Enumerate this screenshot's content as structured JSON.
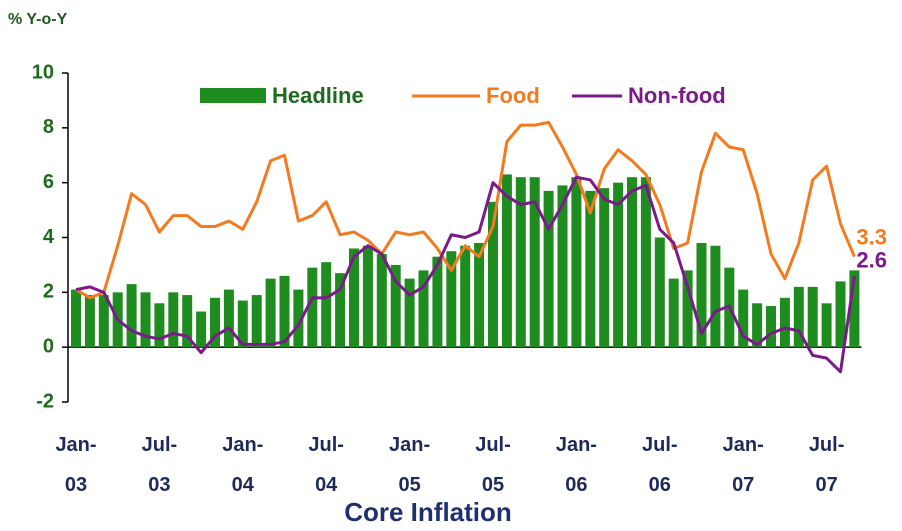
{
  "chart_data": {
    "type": "bar",
    "title": "Core Inflation",
    "y_label": "% Y-o-Y",
    "categories": [
      "Jan-\n03",
      null,
      null,
      null,
      null,
      null,
      "Jul-\n03",
      null,
      null,
      null,
      null,
      null,
      "Jan-\n04",
      null,
      null,
      null,
      null,
      null,
      "Jul-\n04",
      null,
      null,
      null,
      null,
      null,
      "Jan-\n05",
      null,
      null,
      null,
      null,
      null,
      "Jul-\n05",
      null,
      null,
      null,
      null,
      null,
      "Jan-\n06",
      null,
      null,
      null,
      null,
      null,
      "Jul-\n06",
      null,
      null,
      null,
      null,
      null,
      "Jan-\n07",
      null,
      null,
      null,
      null,
      null,
      "Jul-\n07",
      null,
      null
    ],
    "series": [
      {
        "name": "Headline",
        "type": "bar",
        "color": "#1e8c1e",
        "values": [
          2.1,
          1.9,
          1.9,
          2.0,
          2.3,
          2.0,
          1.6,
          2.0,
          1.9,
          1.3,
          1.8,
          2.1,
          1.7,
          1.9,
          2.5,
          2.6,
          2.1,
          2.9,
          3.1,
          2.7,
          3.6,
          3.7,
          3.4,
          3.0,
          2.5,
          2.8,
          3.3,
          3.5,
          3.7,
          3.8,
          5.3,
          6.3,
          6.2,
          6.2,
          5.7,
          5.9,
          6.2,
          5.7,
          5.8,
          6.0,
          6.2,
          6.2,
          4.0,
          2.5,
          2.8,
          3.8,
          3.7,
          2.9,
          2.1,
          1.6,
          1.5,
          1.8,
          2.2,
          2.2,
          1.6,
          2.4,
          2.8
        ]
      },
      {
        "name": "Food",
        "type": "line",
        "color": "#f47a20",
        "end_label": true,
        "values": [
          2.1,
          1.8,
          2.0,
          3.7,
          5.6,
          5.2,
          4.2,
          4.8,
          4.8,
          4.4,
          4.4,
          4.6,
          4.3,
          5.3,
          6.8,
          7.0,
          4.6,
          4.8,
          5.3,
          4.1,
          4.2,
          3.9,
          3.4,
          4.2,
          4.1,
          4.2,
          3.6,
          2.8,
          3.7,
          3.3,
          4.4,
          7.5,
          8.1,
          8.1,
          8.2,
          7.3,
          6.3,
          4.9,
          6.5,
          7.2,
          6.8,
          6.3,
          5.2,
          3.6,
          3.8,
          6.4,
          7.8,
          7.3,
          7.2,
          5.6,
          3.4,
          2.5,
          3.8,
          6.1,
          6.6,
          4.5,
          3.3
        ]
      },
      {
        "name": "Non-food",
        "type": "line",
        "color": "#7b1a8b",
        "end_label": true,
        "values": [
          2.1,
          2.2,
          2.0,
          1.0,
          0.6,
          0.4,
          0.3,
          0.5,
          0.4,
          -0.2,
          0.4,
          0.7,
          0.1,
          0.1,
          0.1,
          0.2,
          0.8,
          1.8,
          1.8,
          2.1,
          3.3,
          3.7,
          3.4,
          2.4,
          1.9,
          2.2,
          3.0,
          4.1,
          4.0,
          4.2,
          6.0,
          5.5,
          5.2,
          5.3,
          4.3,
          5.2,
          6.2,
          6.1,
          5.4,
          5.2,
          5.7,
          5.9,
          4.3,
          3.8,
          2.2,
          0.5,
          1.3,
          1.5,
          0.4,
          0.1,
          0.5,
          0.7,
          0.6,
          -0.3,
          -0.4,
          -0.9,
          2.6
        ]
      }
    ],
    "ylim": [
      -2,
      10
    ],
    "yticks": [
      -2,
      0,
      2,
      4,
      6,
      8,
      10
    ]
  }
}
